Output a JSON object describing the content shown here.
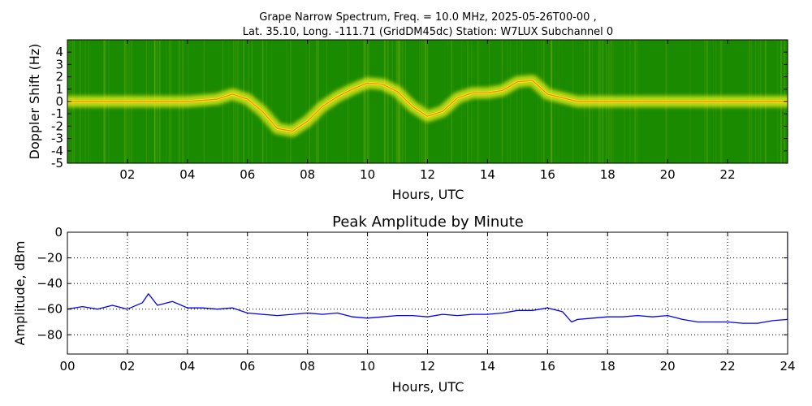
{
  "colors": {
    "spectrum_background": "#1a8a00",
    "spectrum_signal": "#f2f21c",
    "spectrum_peak": "#ff6a00",
    "amplitude_line": "#0000ff",
    "grid": "#000000"
  },
  "chart_data": [
    {
      "type": "heatmap",
      "title_line1": "Grape Narrow Spectrum, Freq. = 10.0 MHz, 2025-05-26T00-00 ,",
      "title_line2": "Lat.  35.10, Long. -111.71 (GridDM45dc) Station: W7LUX Subchannel 0",
      "xlabel": "Hours, UTC",
      "ylabel": "Doppler Shift (Hz)",
      "xlim": [
        0,
        24
      ],
      "ylim": [
        -5,
        5
      ],
      "x_ticks": [
        "02",
        "04",
        "06",
        "08",
        "10",
        "12",
        "14",
        "16",
        "18",
        "20",
        "22"
      ],
      "x_tick_values": [
        2,
        4,
        6,
        8,
        10,
        12,
        14,
        16,
        18,
        20,
        22
      ],
      "y_ticks": [
        "4",
        "3",
        "2",
        "1",
        "0",
        "-1",
        "-2",
        "-3",
        "-4",
        "-5"
      ],
      "y_tick_values": [
        4,
        3,
        2,
        1,
        0,
        -1,
        -2,
        -3,
        -4,
        -5
      ],
      "doppler_trace": {
        "hours": [
          0,
          1,
          2,
          3,
          4,
          5,
          5.5,
          6,
          6.5,
          7,
          7.5,
          8,
          8.5,
          9,
          9.5,
          10,
          10.5,
          11,
          11.5,
          12,
          12.5,
          13,
          13.5,
          14,
          14.5,
          15,
          15.5,
          16,
          17,
          18,
          19,
          20,
          21,
          22,
          23,
          24
        ],
        "shift_hz": [
          0,
          0,
          0,
          0,
          0,
          0.2,
          0.6,
          0.2,
          -0.8,
          -2.2,
          -2.4,
          -1.6,
          -0.4,
          0.4,
          1.0,
          1.5,
          1.4,
          0.8,
          -0.4,
          -1.2,
          -0.8,
          0.3,
          0.7,
          0.7,
          0.9,
          1.6,
          1.7,
          0.6,
          0,
          0,
          0,
          0,
          0,
          0,
          0,
          0
        ]
      }
    },
    {
      "type": "line",
      "title": "Peak Amplitude by Minute",
      "xlabel": "Hours, UTC",
      "ylabel": "Amplitude, dBm",
      "xlim": [
        0,
        24
      ],
      "ylim": [
        -95,
        0
      ],
      "grid": true,
      "x_ticks": [
        "00",
        "02",
        "04",
        "06",
        "08",
        "10",
        "12",
        "14",
        "16",
        "18",
        "20",
        "22",
        "24"
      ],
      "x_tick_values": [
        0,
        2,
        4,
        6,
        8,
        10,
        12,
        14,
        16,
        18,
        20,
        22,
        24
      ],
      "y_ticks": [
        "0",
        "−20",
        "−40",
        "−60",
        "−80"
      ],
      "y_tick_values": [
        0,
        -20,
        -40,
        -60,
        -80
      ],
      "series": [
        {
          "hours": [
            0,
            0.5,
            1,
            1.5,
            2,
            2.5,
            2.7,
            3,
            3.5,
            3.7,
            4,
            4.5,
            5,
            5.5,
            6,
            6.5,
            7,
            7.5,
            8,
            8.5,
            9,
            9.5,
            10,
            10.5,
            11,
            11.5,
            12,
            12.5,
            13,
            13.5,
            14,
            14.5,
            15,
            15.5,
            16,
            16.5,
            16.8,
            17,
            17.5,
            18,
            18.5,
            19,
            19.5,
            20,
            20.5,
            21,
            21.5,
            22,
            22.5,
            23,
            23.5,
            24
          ],
          "values": [
            -60,
            -58,
            -60,
            -57,
            -60,
            -55,
            -48,
            -57,
            -54,
            -56,
            -59,
            -59,
            -60,
            -59,
            -63,
            -64,
            -65,
            -64,
            -63,
            -64,
            -63,
            -66,
            -67,
            -66,
            -65,
            -65,
            -66,
            -64,
            -65,
            -64,
            -64,
            -63,
            -61,
            -61,
            -59,
            -62,
            -70,
            -68,
            -67,
            -66,
            -66,
            -65,
            -66,
            -65,
            -68,
            -70,
            -70,
            -70,
            -71,
            -71,
            -69,
            -68
          ]
        }
      ]
    }
  ]
}
